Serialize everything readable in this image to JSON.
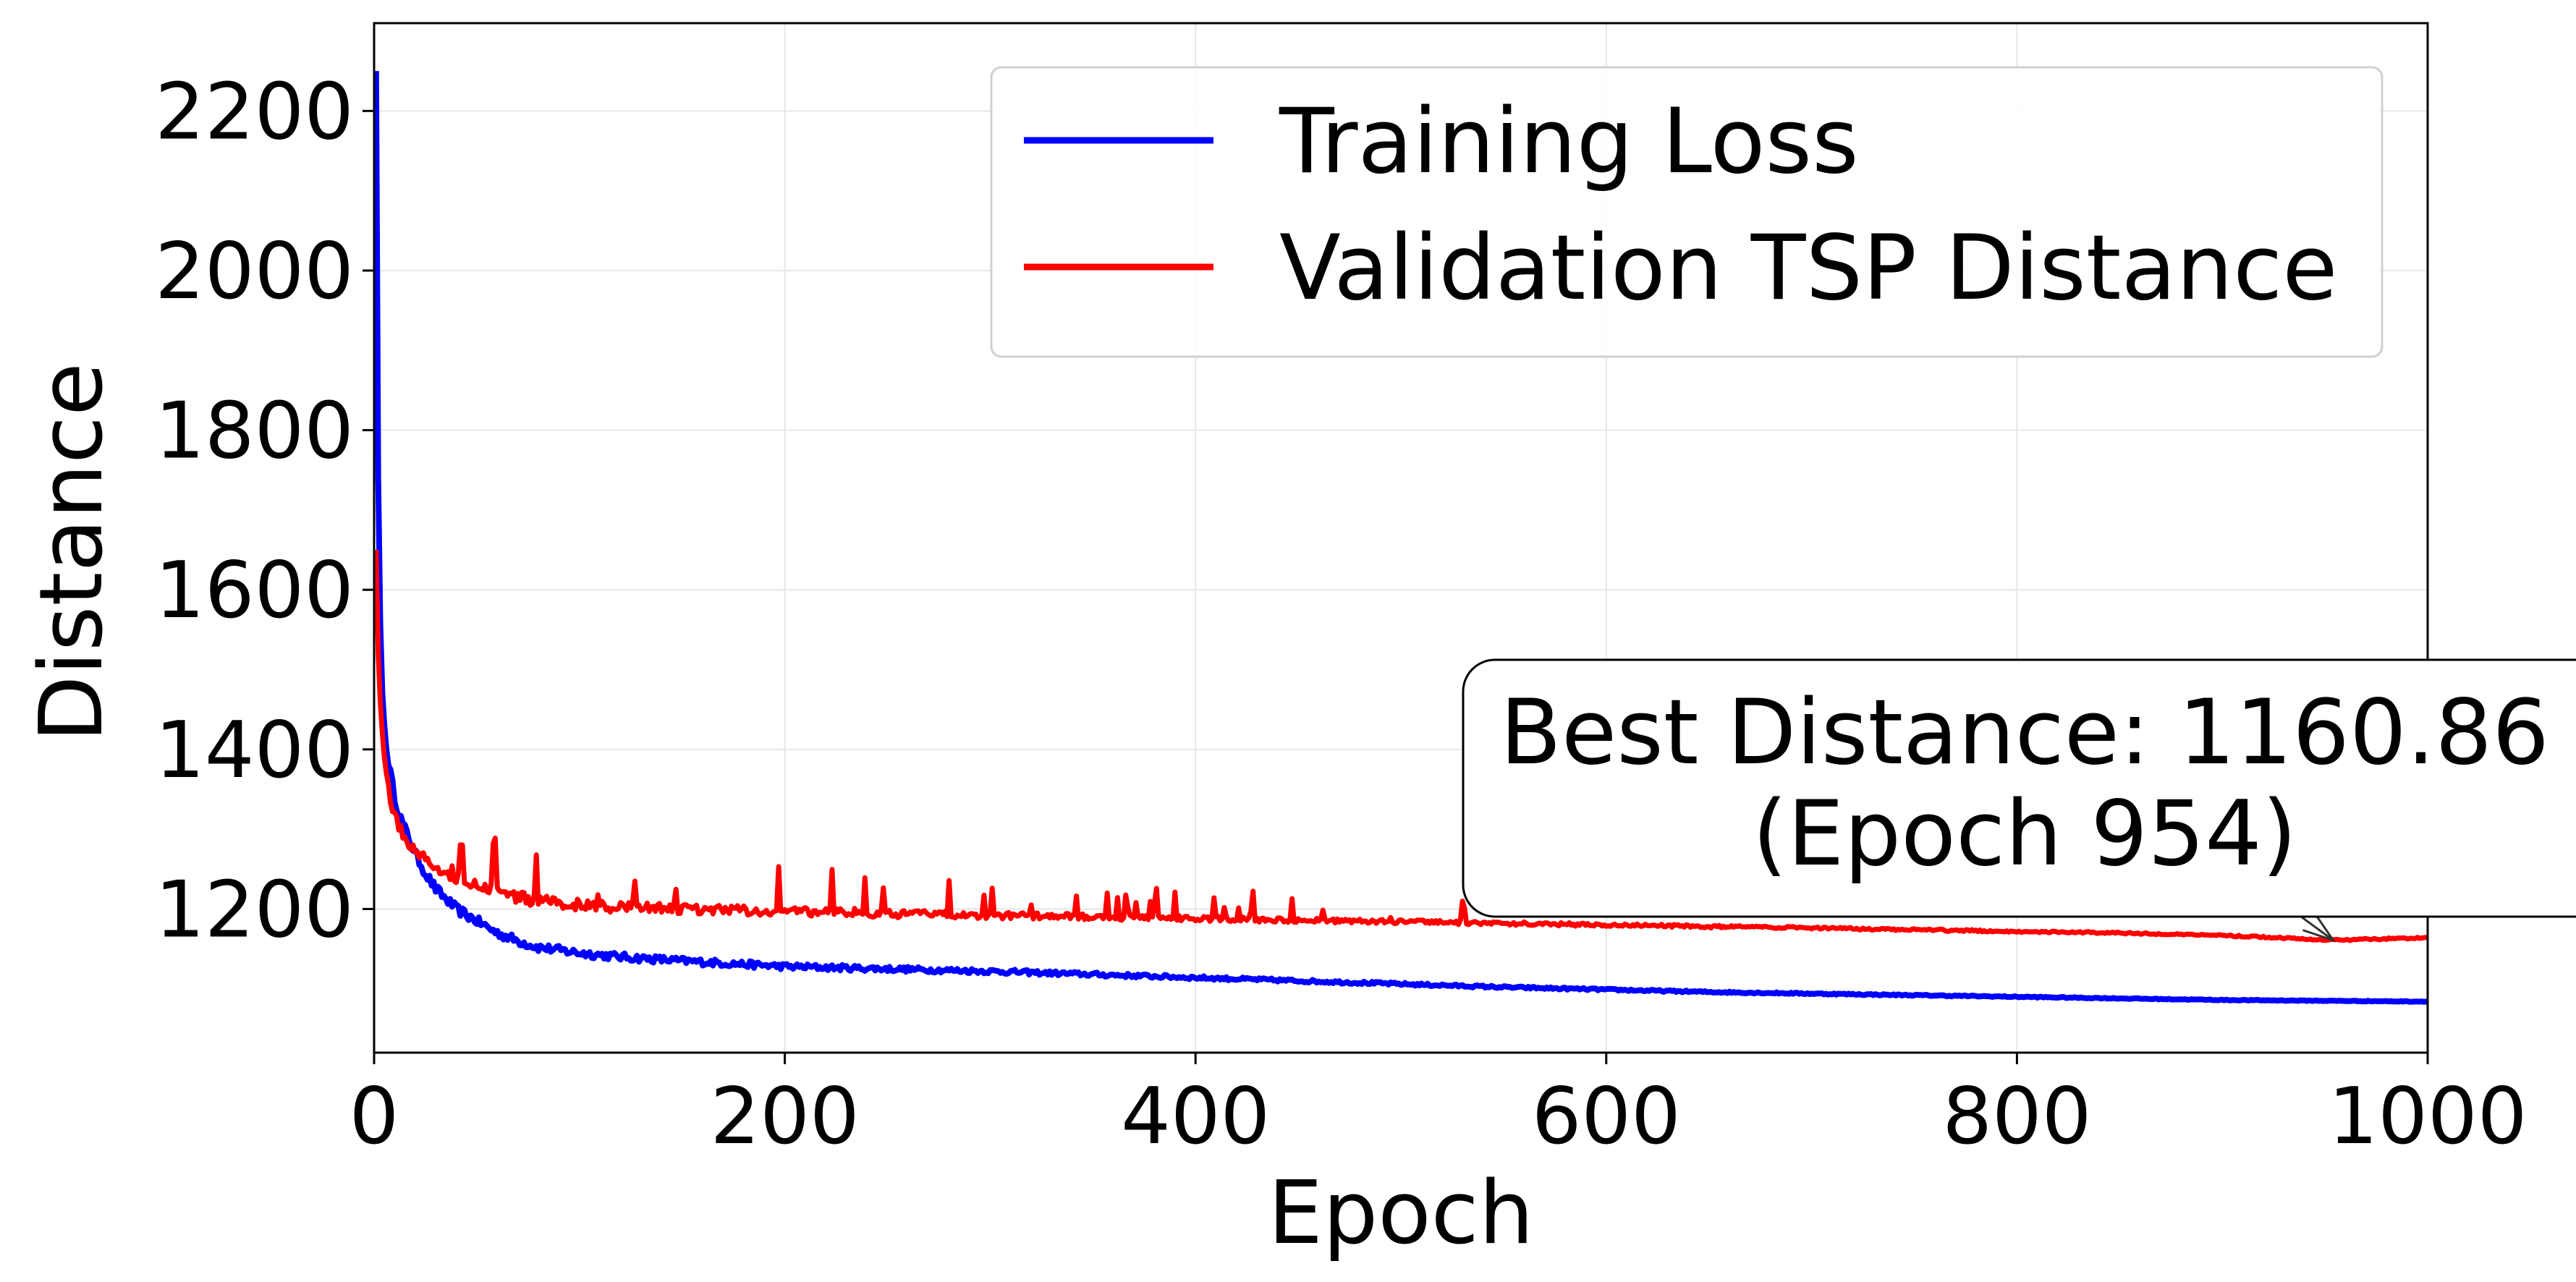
{
  "chart_data": {
    "type": "line",
    "title": "",
    "xlabel": "Epoch",
    "ylabel": "Distance",
    "xlim": [
      0,
      1000
    ],
    "ylim": [
      1020,
      2310
    ],
    "xticks": [
      0,
      200,
      400,
      600,
      800,
      1000
    ],
    "yticks": [
      1200,
      1400,
      1600,
      1800,
      2000,
      2200
    ],
    "grid": true,
    "legend_position": "top-right",
    "series": [
      {
        "name": "Training Loss",
        "color": "#0000ff",
        "x": [
          1,
          2,
          3,
          4,
          5,
          6,
          8,
          10,
          12,
          15,
          20,
          25,
          30,
          40,
          50,
          60,
          70,
          80,
          100,
          120,
          150,
          200,
          250,
          300,
          350,
          400,
          450,
          500,
          550,
          600,
          650,
          700,
          750,
          800,
          850,
          900,
          950,
          1000
        ],
        "values": [
          2250,
          1740,
          1560,
          1470,
          1430,
          1400,
          1370,
          1340,
          1320,
          1300,
          1270,
          1245,
          1225,
          1200,
          1185,
          1170,
          1160,
          1152,
          1145,
          1140,
          1135,
          1128,
          1125,
          1122,
          1118,
          1114,
          1110,
          1106,
          1102,
          1099,
          1096,
          1094,
          1092,
          1090,
          1088,
          1086,
          1085,
          1084
        ]
      },
      {
        "name": "Validation TSP Distance",
        "color": "#ff0000",
        "x": [
          1,
          2,
          3,
          4,
          5,
          6,
          8,
          10,
          12,
          15,
          20,
          25,
          30,
          40,
          50,
          60,
          70,
          80,
          100,
          120,
          150,
          200,
          250,
          300,
          350,
          400,
          450,
          500,
          550,
          600,
          650,
          700,
          750,
          800,
          850,
          900,
          954,
          1000
        ],
        "values": [
          1650,
          1520,
          1460,
          1420,
          1390,
          1370,
          1340,
          1320,
          1300,
          1290,
          1275,
          1260,
          1250,
          1240,
          1232,
          1222,
          1215,
          1210,
          1205,
          1202,
          1200,
          1197,
          1194,
          1192,
          1190,
          1188,
          1186,
          1184,
          1182,
          1180,
          1178,
          1176,
          1174,
          1172,
          1170,
          1167,
          1161,
          1164
        ]
      }
    ],
    "annotation": {
      "line1": "Best Distance: 1160.86",
      "line2": "(Epoch 954)",
      "x": 954,
      "y": 1160.86
    }
  }
}
